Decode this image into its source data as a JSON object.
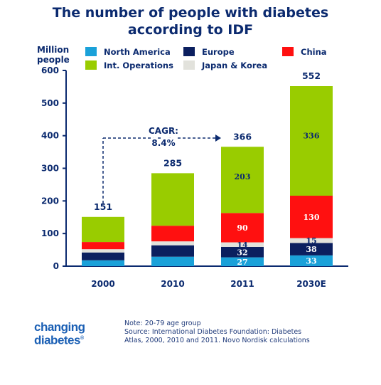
{
  "title_line1": "The number of people with diabetes",
  "title_line2": "according to IDF",
  "colors": {
    "north_america": "#1aa1d9",
    "europe": "#0b1f5f",
    "japan_korea": "#e2e2dc",
    "china": "#ff1010",
    "int_operations": "#99cc00",
    "text": "#0b2a6f"
  },
  "chart_data": {
    "type": "bar",
    "stacked": true,
    "categories": [
      "2000",
      "2010",
      "2011",
      "2030E"
    ],
    "ylabel": "Million people",
    "ylim": [
      0,
      600
    ],
    "yticks": [
      0,
      100,
      200,
      300,
      400,
      500,
      600
    ],
    "grid": false,
    "legend_position": "top",
    "totals": [
      "151",
      "285",
      "366",
      "552"
    ],
    "series": [
      {
        "name": "North America",
        "key": "north_america",
        "values": [
          18,
          29,
          27,
          33
        ],
        "labels": [
          "",
          "",
          "27",
          "33"
        ]
      },
      {
        "name": "Europe",
        "key": "europe",
        "values": [
          24,
          35,
          32,
          38
        ],
        "labels": [
          "",
          "",
          "32",
          "38"
        ]
      },
      {
        "name": "Japan & Korea",
        "key": "japan_korea",
        "values": [
          10,
          12,
          14,
          15
        ],
        "labels": [
          "",
          "",
          "14",
          "15"
        ]
      },
      {
        "name": "China",
        "key": "china",
        "values": [
          22,
          48,
          90,
          130
        ],
        "labels": [
          "",
          "",
          "90",
          "130"
        ]
      },
      {
        "name": "Int. Operations",
        "key": "int_operations",
        "values": [
          77,
          161,
          203,
          336
        ],
        "labels": [
          "",
          "",
          "203",
          "336"
        ]
      }
    ],
    "legend_order": [
      {
        "name": "North America",
        "key": "north_america"
      },
      {
        "name": "Europe",
        "key": "europe"
      },
      {
        "name": "China",
        "key": "china"
      },
      {
        "name": "Int. Operations",
        "key": "int_operations"
      },
      {
        "name": "Japan & Korea",
        "key": "japan_korea"
      }
    ],
    "annotation": {
      "line1": "CAGR:",
      "line2": "8.4%"
    }
  },
  "ylabel_line1": "Million",
  "ylabel_line2": "people",
  "footnote": {
    "line1": "Note: 20-79 age group",
    "line2": "Source: International Diabetes Foundation: Diabetes",
    "line3": "Atlas, 2000, 2010 and 2011. Novo Nordisk calculations"
  },
  "logo": {
    "line1": "changing",
    "line2": "diabetes",
    "mark": "®"
  }
}
